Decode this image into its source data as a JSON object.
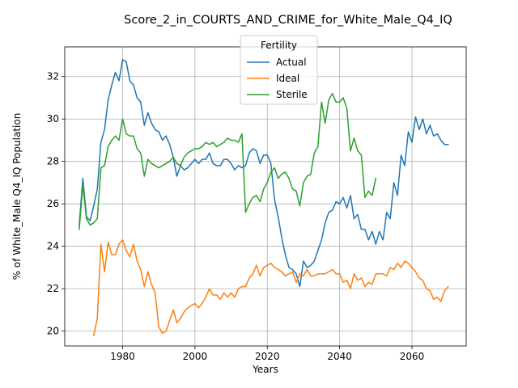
{
  "chart_data": {
    "type": "line",
    "title": "Score_2_in_COURTS_AND_CRIME_for_White_Male_Q4_IQ",
    "xlabel": "Years",
    "ylabel": "% of White_Male Q4_IQ Population",
    "xlim": [
      1964,
      2075
    ],
    "ylim": [
      19.3,
      33.4
    ],
    "xticks": [
      1980,
      2000,
      2020,
      2040,
      2060
    ],
    "yticks": [
      20,
      22,
      24,
      26,
      28,
      30,
      32
    ],
    "grid": true,
    "legend": {
      "title": "Fertility",
      "placement": "upper-center"
    },
    "series": [
      {
        "name": "Actual",
        "color": "#1f77b4",
        "x": [
          1968,
          1969,
          1970,
          1971,
          1972,
          1973,
          1974,
          1975,
          1976,
          1977,
          1978,
          1979,
          1980,
          1981,
          1982,
          1983,
          1984,
          1985,
          1986,
          1987,
          1988,
          1989,
          1990,
          1991,
          1992,
          1993,
          1994,
          1995,
          1996,
          1997,
          1998,
          1999,
          2000,
          2001,
          2002,
          2003,
          2004,
          2005,
          2006,
          2007,
          2008,
          2009,
          2010,
          2011,
          2012,
          2013,
          2014,
          2015,
          2016,
          2017,
          2018,
          2019,
          2020,
          2021,
          2022,
          2023,
          2024,
          2025,
          2026,
          2027,
          2028,
          2029,
          2030,
          2031,
          2032,
          2033,
          2034,
          2035,
          2036,
          2037,
          2038,
          2039,
          2040,
          2041,
          2042,
          2043,
          2044,
          2045,
          2046,
          2047,
          2048,
          2049,
          2050,
          2051,
          2052,
          2053,
          2054,
          2055,
          2056,
          2057,
          2058,
          2059,
          2060,
          2061,
          2062,
          2063,
          2064,
          2065,
          2066,
          2067,
          2068,
          2069,
          2070
        ],
        "values": [
          25.0,
          27.2,
          25.4,
          25.2,
          25.9,
          26.7,
          28.9,
          29.5,
          30.9,
          31.6,
          32.2,
          31.8,
          32.8,
          32.7,
          31.8,
          31.6,
          31.0,
          30.8,
          29.7,
          30.3,
          29.8,
          29.5,
          29.4,
          29.0,
          29.2,
          28.8,
          28.2,
          27.3,
          27.8,
          27.6,
          27.7,
          27.9,
          28.1,
          27.9,
          28.1,
          28.1,
          28.4,
          27.9,
          27.8,
          27.8,
          28.1,
          28.1,
          27.9,
          27.6,
          27.8,
          27.7,
          27.8,
          28.4,
          28.6,
          28.5,
          27.9,
          28.3,
          28.3,
          27.9,
          26.2,
          25.4,
          24.4,
          23.6,
          23.0,
          22.9,
          22.7,
          22.1,
          23.3,
          23.0,
          23.1,
          23.3,
          23.8,
          24.3,
          25.1,
          25.6,
          25.7,
          26.1,
          26.0,
          26.3,
          25.8,
          26.4,
          25.3,
          25.5,
          24.8,
          24.8,
          24.3,
          24.7,
          24.1,
          24.7,
          24.3,
          25.6,
          25.3,
          27.0,
          26.4,
          28.3,
          27.8,
          29.4,
          28.9,
          30.1,
          29.5,
          30.0,
          29.3,
          29.7,
          29.2,
          29.3,
          29.0,
          28.8,
          28.8
        ]
      },
      {
        "name": "Ideal",
        "color": "#ff7f0e",
        "x": [
          1972,
          1973,
          1974,
          1975,
          1976,
          1977,
          1978,
          1979,
          1980,
          1981,
          1982,
          1983,
          1984,
          1985,
          1986,
          1987,
          1988,
          1989,
          1990,
          1991,
          1992,
          1993,
          1994,
          1995,
          1996,
          1997,
          1998,
          1999,
          2000,
          2001,
          2002,
          2003,
          2004,
          2005,
          2006,
          2007,
          2008,
          2009,
          2010,
          2011,
          2012,
          2013,
          2014,
          2015,
          2016,
          2017,
          2018,
          2019,
          2020,
          2021,
          2022,
          2023,
          2024,
          2025,
          2026,
          2027,
          2028,
          2029,
          2030,
          2031,
          2032,
          2033,
          2034,
          2035,
          2036,
          2037,
          2038,
          2039,
          2040,
          2041,
          2042,
          2043,
          2044,
          2045,
          2046,
          2047,
          2048,
          2049,
          2050,
          2051,
          2052,
          2053,
          2054,
          2055,
          2056,
          2057,
          2058,
          2059,
          2060,
          2061,
          2062,
          2063,
          2064,
          2065,
          2066,
          2067,
          2068,
          2069,
          2070
        ],
        "values": [
          19.8,
          20.6,
          24.1,
          22.8,
          24.2,
          23.6,
          23.6,
          24.1,
          24.3,
          23.8,
          23.5,
          24.1,
          23.3,
          22.9,
          22.1,
          22.8,
          22.2,
          21.8,
          20.2,
          19.9,
          20.0,
          20.5,
          21.0,
          20.4,
          20.6,
          20.9,
          21.1,
          21.2,
          21.3,
          21.1,
          21.3,
          21.6,
          22.0,
          21.7,
          21.7,
          21.5,
          21.8,
          21.6,
          21.8,
          21.6,
          22.0,
          22.1,
          22.1,
          22.5,
          22.7,
          23.1,
          22.6,
          23.0,
          23.1,
          23.2,
          23.0,
          22.9,
          22.8,
          22.6,
          22.7,
          22.8,
          22.3,
          22.7,
          22.6,
          22.9,
          22.6,
          22.6,
          22.7,
          22.7,
          22.7,
          22.8,
          22.9,
          22.7,
          22.7,
          22.3,
          22.4,
          22.0,
          22.7,
          22.4,
          22.5,
          22.1,
          22.3,
          22.2,
          22.7,
          22.7,
          22.7,
          22.6,
          23.0,
          22.9,
          23.2,
          23.0,
          23.3,
          23.2,
          23.0,
          22.8,
          22.5,
          22.4,
          22.0,
          21.9,
          21.5,
          21.6,
          21.4,
          21.9,
          22.1
        ]
      },
      {
        "name": "Sterile",
        "color": "#2ca02c",
        "x": [
          1968,
          1969,
          1970,
          1971,
          1972,
          1973,
          1974,
          1975,
          1976,
          1977,
          1978,
          1979,
          1980,
          1981,
          1982,
          1983,
          1984,
          1985,
          1986,
          1987,
          1988,
          1989,
          1990,
          1991,
          1992,
          1993,
          1994,
          1995,
          1996,
          1997,
          1998,
          1999,
          2000,
          2001,
          2002,
          2003,
          2004,
          2005,
          2006,
          2007,
          2008,
          2009,
          2010,
          2011,
          2012,
          2013,
          2014,
          2015,
          2016,
          2017,
          2018,
          2019,
          2020,
          2021,
          2022,
          2023,
          2024,
          2025,
          2026,
          2027,
          2028,
          2029,
          2030,
          2031,
          2032,
          2033,
          2034,
          2035,
          2036,
          2037,
          2038,
          2039,
          2040,
          2041,
          2042,
          2043,
          2044,
          2045,
          2046,
          2047,
          2048,
          2049,
          2050
        ],
        "values": [
          24.8,
          26.9,
          25.3,
          25.0,
          25.1,
          25.3,
          27.7,
          27.8,
          28.7,
          29.0,
          29.2,
          29.0,
          30.0,
          29.3,
          29.2,
          29.2,
          28.6,
          28.4,
          27.3,
          28.1,
          27.9,
          27.8,
          27.7,
          27.8,
          27.9,
          28.0,
          28.2,
          27.9,
          27.8,
          28.2,
          28.4,
          28.5,
          28.6,
          28.6,
          28.7,
          28.9,
          28.8,
          28.9,
          28.7,
          28.8,
          28.9,
          29.1,
          29.0,
          29.0,
          28.9,
          29.3,
          25.6,
          26.0,
          26.3,
          26.4,
          26.1,
          26.7,
          27.0,
          27.5,
          27.7,
          27.2,
          27.4,
          27.5,
          27.2,
          26.7,
          26.6,
          25.9,
          27.0,
          27.3,
          27.4,
          28.4,
          28.7,
          30.8,
          29.8,
          30.9,
          31.2,
          30.8,
          30.8,
          31.0,
          30.5,
          28.5,
          29.1,
          28.5,
          28.3,
          26.3,
          26.6,
          26.4,
          27.2
        ]
      }
    ]
  }
}
